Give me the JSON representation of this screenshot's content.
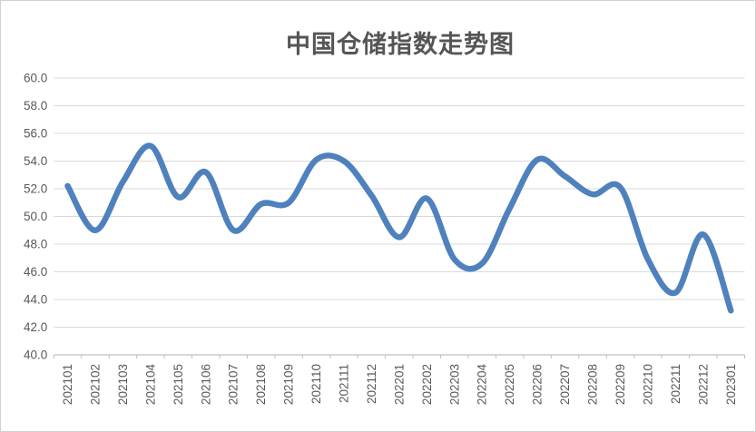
{
  "chart": {
    "title": "中国仓储指数走势图"
  },
  "style": {
    "line_color": "#4F81BD",
    "line_width": 6.5,
    "gridline_color": "#D9D9D9",
    "axis_line_color": "#BFBFBF",
    "tick_color": "#BFBFBF",
    "label_color": "#595959",
    "title_color": "#555555",
    "background_color": "#FFFFFF",
    "border_color": "#D2D2D2"
  },
  "chart_data": {
    "type": "line",
    "title": "中国仓储指数走势图",
    "series_name": "中国仓储指数",
    "categories": [
      "202101",
      "202102",
      "202103",
      "202104",
      "202105",
      "202106",
      "202107",
      "202108",
      "202109",
      "202110",
      "202111",
      "202112",
      "202201",
      "202202",
      "202203",
      "202204",
      "202205",
      "202206",
      "202207",
      "202208",
      "202209",
      "202210",
      "202211",
      "202212",
      "202301"
    ],
    "values": [
      52.2,
      49.0,
      52.5,
      55.1,
      51.4,
      53.2,
      49.0,
      50.9,
      51.0,
      54.1,
      54.0,
      51.5,
      48.5,
      51.3,
      46.9,
      46.6,
      50.6,
      54.1,
      52.9,
      51.6,
      52.1,
      46.9,
      44.5,
      48.7,
      43.2
    ],
    "xlabel": "",
    "ylabel": "",
    "ylim": [
      40.0,
      60.0
    ],
    "y_step": 2.0,
    "y_tick_labels": [
      "60.0",
      "58.0",
      "56.0",
      "54.0",
      "52.0",
      "50.0",
      "48.0",
      "46.0",
      "44.0",
      "42.0",
      "40.0"
    ],
    "grid": "horizontal",
    "legend": "none",
    "smoothed": true,
    "x_label_rotation": -90
  }
}
